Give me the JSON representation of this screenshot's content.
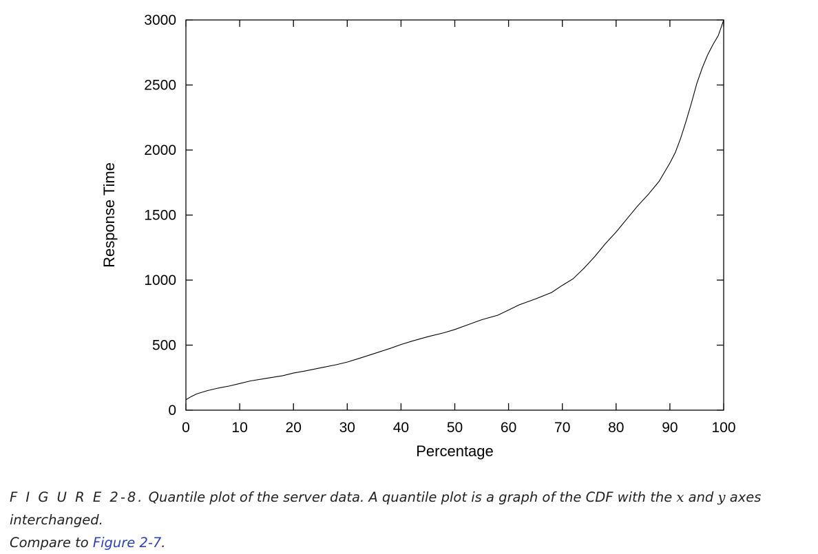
{
  "chart_data": {
    "type": "line",
    "xlabel": "Percentage",
    "ylabel": "Response Time",
    "xlim": [
      0,
      100
    ],
    "ylim": [
      0,
      3000
    ],
    "x_ticks": [
      0,
      10,
      20,
      30,
      40,
      50,
      60,
      70,
      80,
      90,
      100
    ],
    "y_ticks": [
      0,
      500,
      1000,
      1500,
      2000,
      2500,
      3000
    ],
    "x_tick_labels": [
      "0",
      "10",
      "20",
      "30",
      "40",
      "50",
      "60",
      "70",
      "80",
      "90",
      "100"
    ],
    "y_tick_labels": [
      "0",
      "500",
      "1000",
      "1500",
      "2000",
      "2500",
      "3000"
    ],
    "grid": false,
    "series": [
      {
        "color": "#000000",
        "x": [
          0,
          1,
          2,
          4,
          6,
          8,
          10,
          12,
          15,
          18,
          20,
          22,
          25,
          28,
          30,
          32,
          35,
          38,
          40,
          42,
          45,
          48,
          50,
          52,
          55,
          58,
          60,
          62,
          65,
          68,
          70,
          72,
          74,
          76,
          78,
          80,
          82,
          84,
          86,
          88,
          89,
          90,
          91,
          92,
          93,
          94,
          95,
          96,
          97,
          98,
          99,
          100
        ],
        "y": [
          80,
          105,
          125,
          150,
          170,
          185,
          205,
          225,
          245,
          265,
          285,
          300,
          325,
          350,
          370,
          395,
          435,
          475,
          505,
          530,
          565,
          595,
          620,
          650,
          695,
          730,
          770,
          810,
          855,
          905,
          960,
          1010,
          1090,
          1180,
          1280,
          1370,
          1470,
          1570,
          1660,
          1760,
          1830,
          1900,
          1980,
          2090,
          2220,
          2360,
          2510,
          2630,
          2730,
          2810,
          2880,
          3000
        ]
      }
    ]
  },
  "caption": {
    "figure_number": "F I G U R E  2-8.",
    "text_before_x": " Quantile plot of the server data. A quantile plot is a graph of the CDF with the ",
    "x_var": "x",
    "text_between": " and ",
    "y_var": "y",
    "text_after_y": " axes interchanged.",
    "line2_prefix": "Compare to ",
    "link_text": "Figure 2-7",
    "line2_suffix": "."
  }
}
